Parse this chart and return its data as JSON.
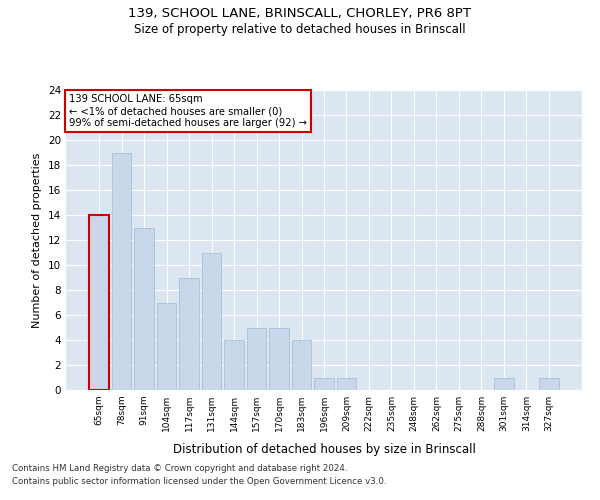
{
  "title1": "139, SCHOOL LANE, BRINSCALL, CHORLEY, PR6 8PT",
  "title2": "Size of property relative to detached houses in Brinscall",
  "xlabel": "Distribution of detached houses by size in Brinscall",
  "ylabel": "Number of detached properties",
  "categories": [
    "65sqm",
    "78sqm",
    "91sqm",
    "104sqm",
    "117sqm",
    "131sqm",
    "144sqm",
    "157sqm",
    "170sqm",
    "183sqm",
    "196sqm",
    "209sqm",
    "222sqm",
    "235sqm",
    "248sqm",
    "262sqm",
    "275sqm",
    "288sqm",
    "301sqm",
    "314sqm",
    "327sqm"
  ],
  "values": [
    14,
    19,
    13,
    7,
    9,
    11,
    4,
    5,
    5,
    4,
    1,
    1,
    0,
    0,
    0,
    0,
    0,
    0,
    1,
    0,
    1
  ],
  "bar_color": "#c8d8ea",
  "bar_edge_color": "#a8c0d8",
  "highlight_edge_color": "#cc0000",
  "annotation_text": "139 SCHOOL LANE: 65sqm\n← <1% of detached houses are smaller (0)\n99% of semi-detached houses are larger (92) →",
  "annotation_box_color": "#ffffff",
  "annotation_box_edge": "#cc0000",
  "background_color": "#dce6f1",
  "ylim": [
    0,
    24
  ],
  "yticks": [
    0,
    2,
    4,
    6,
    8,
    10,
    12,
    14,
    16,
    18,
    20,
    22,
    24
  ],
  "footnote1": "Contains HM Land Registry data © Crown copyright and database right 2024.",
  "footnote2": "Contains public sector information licensed under the Open Government Licence v3.0."
}
